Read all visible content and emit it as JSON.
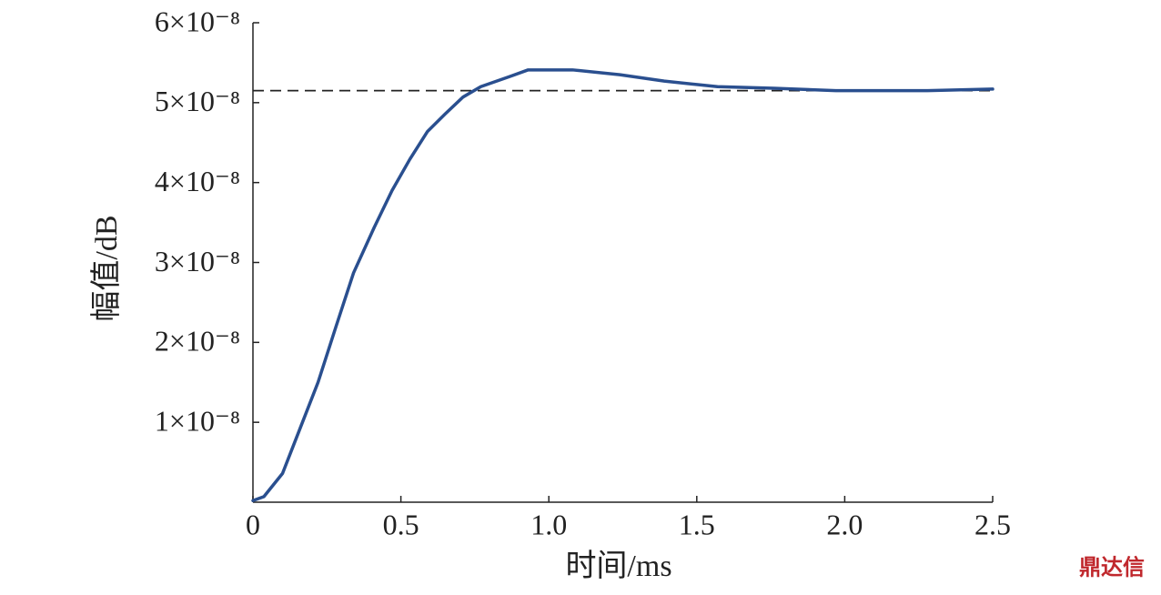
{
  "chart_data": {
    "type": "line",
    "x_label": "时间/ms",
    "y_label": "幅值/dB",
    "watermark": "鼎达信",
    "x": [
      0,
      0.037,
      0.1,
      0.16,
      0.22,
      0.28,
      0.34,
      0.41,
      0.47,
      0.53,
      0.59,
      0.65,
      0.71,
      0.77,
      0.87,
      0.93,
      1.08,
      1.24,
      1.39,
      1.57,
      1.76,
      1.97,
      2.28,
      2.5
    ],
    "series": [
      {
        "color": "#2a4f8f",
        "values": [
          2e-10,
          7e-10,
          3.6e-09,
          9.3e-09,
          1.5e-08,
          2.19e-08,
          2.87e-08,
          3.44e-08,
          3.9e-08,
          4.29e-08,
          4.64e-08,
          4.86e-08,
          5.07e-08,
          5.2e-08,
          5.33e-08,
          5.41e-08,
          5.41e-08,
          5.35e-08,
          5.27e-08,
          5.2e-08,
          5.18e-08,
          5.15e-08,
          5.15e-08,
          5.17e-08
        ]
      }
    ],
    "reference_line": {
      "value": 5.15e-08,
      "color": "#222222",
      "style": "dashed"
    },
    "xlim": [
      0,
      2.5
    ],
    "ylim": [
      0,
      6e-08
    ],
    "xticks": [
      0,
      0.5,
      {
        "value": 1,
        "label": "1.0"
      },
      1.5,
      {
        "value": 2,
        "label": "2.0"
      },
      2.5
    ],
    "yticks": [
      {
        "value": 1e-08,
        "label": "1×10⁻⁸"
      },
      {
        "value": 2e-08,
        "label": "2×10⁻⁸"
      },
      {
        "value": 3e-08,
        "label": "3×10⁻⁸"
      },
      {
        "value": 4e-08,
        "label": "4×10⁻⁸"
      },
      {
        "value": 5e-08,
        "label": "5×10⁻⁸"
      },
      {
        "value": 6e-08,
        "label": "6×10⁻⁸"
      }
    ],
    "grid": false
  }
}
